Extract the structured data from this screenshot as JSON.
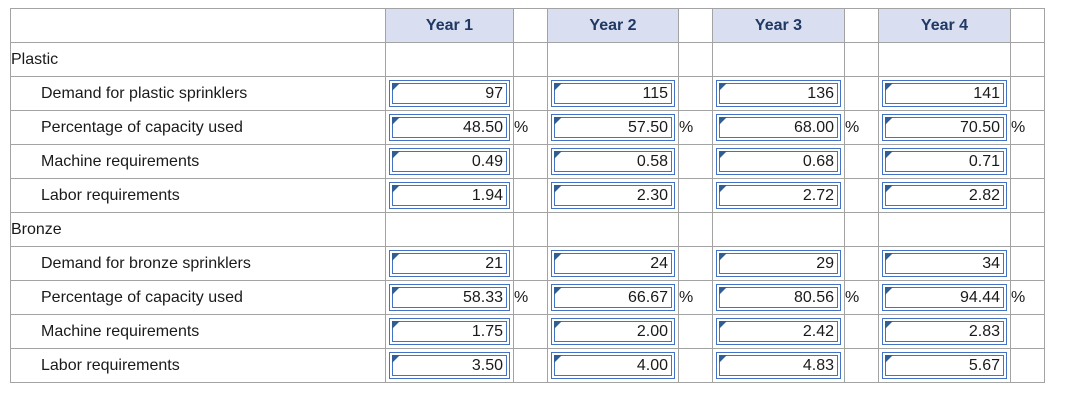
{
  "header": {
    "years": [
      "Year 1",
      "Year 2",
      "Year 3",
      "Year 4"
    ]
  },
  "sections": [
    {
      "name": "Plastic",
      "rows": [
        {
          "label": "Demand for plastic sprinklers",
          "values": [
            "97",
            "115",
            "136",
            "141"
          ],
          "suffix": ""
        },
        {
          "label": "Percentage of capacity used",
          "values": [
            "48.50",
            "57.50",
            "68.00",
            "70.50"
          ],
          "suffix": "%"
        },
        {
          "label": "Machine requirements",
          "values": [
            "0.49",
            "0.58",
            "0.68",
            "0.71"
          ],
          "suffix": ""
        },
        {
          "label": "Labor requirements",
          "values": [
            "1.94",
            "2.30",
            "2.72",
            "2.82"
          ],
          "suffix": ""
        }
      ]
    },
    {
      "name": "Bronze",
      "rows": [
        {
          "label": "Demand for bronze sprinklers",
          "values": [
            "21",
            "24",
            "29",
            "34"
          ],
          "suffix": ""
        },
        {
          "label": "Percentage of capacity used",
          "values": [
            "58.33",
            "66.67",
            "80.56",
            "94.44"
          ],
          "suffix": "%"
        },
        {
          "label": "Machine requirements",
          "values": [
            "1.75",
            "2.00",
            "2.42",
            "2.83"
          ],
          "suffix": ""
        },
        {
          "label": "Labor requirements",
          "values": [
            "3.50",
            "4.00",
            "4.83",
            "5.67"
          ],
          "suffix": ""
        }
      ]
    }
  ]
}
